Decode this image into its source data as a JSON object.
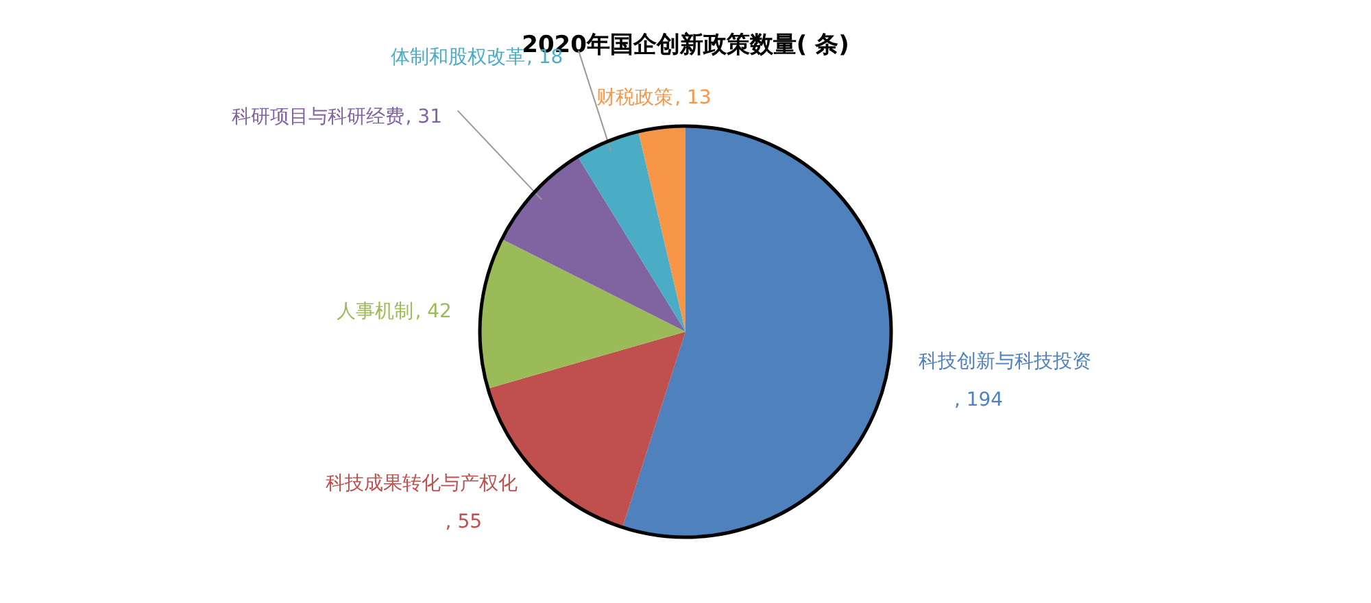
{
  "chart_data": {
    "type": "pie",
    "title": "2020年国企创新政策数量( 条)",
    "categories": [
      "科技创新与科技投资",
      "科技成果转化与产权化",
      "人事机制",
      "科研项目与科研经费",
      "体制和股权改革",
      "财税政策"
    ],
    "values": [
      194,
      55,
      42,
      31,
      18,
      13
    ],
    "colors": [
      "#4f81bd",
      "#c0504d",
      "#9bbb59",
      "#8064a2",
      "#4bacc6",
      "#f79646"
    ],
    "value_labels": [
      ", 194",
      ", 55",
      ", 42",
      ", 31",
      ", 18",
      ", 13"
    ]
  }
}
